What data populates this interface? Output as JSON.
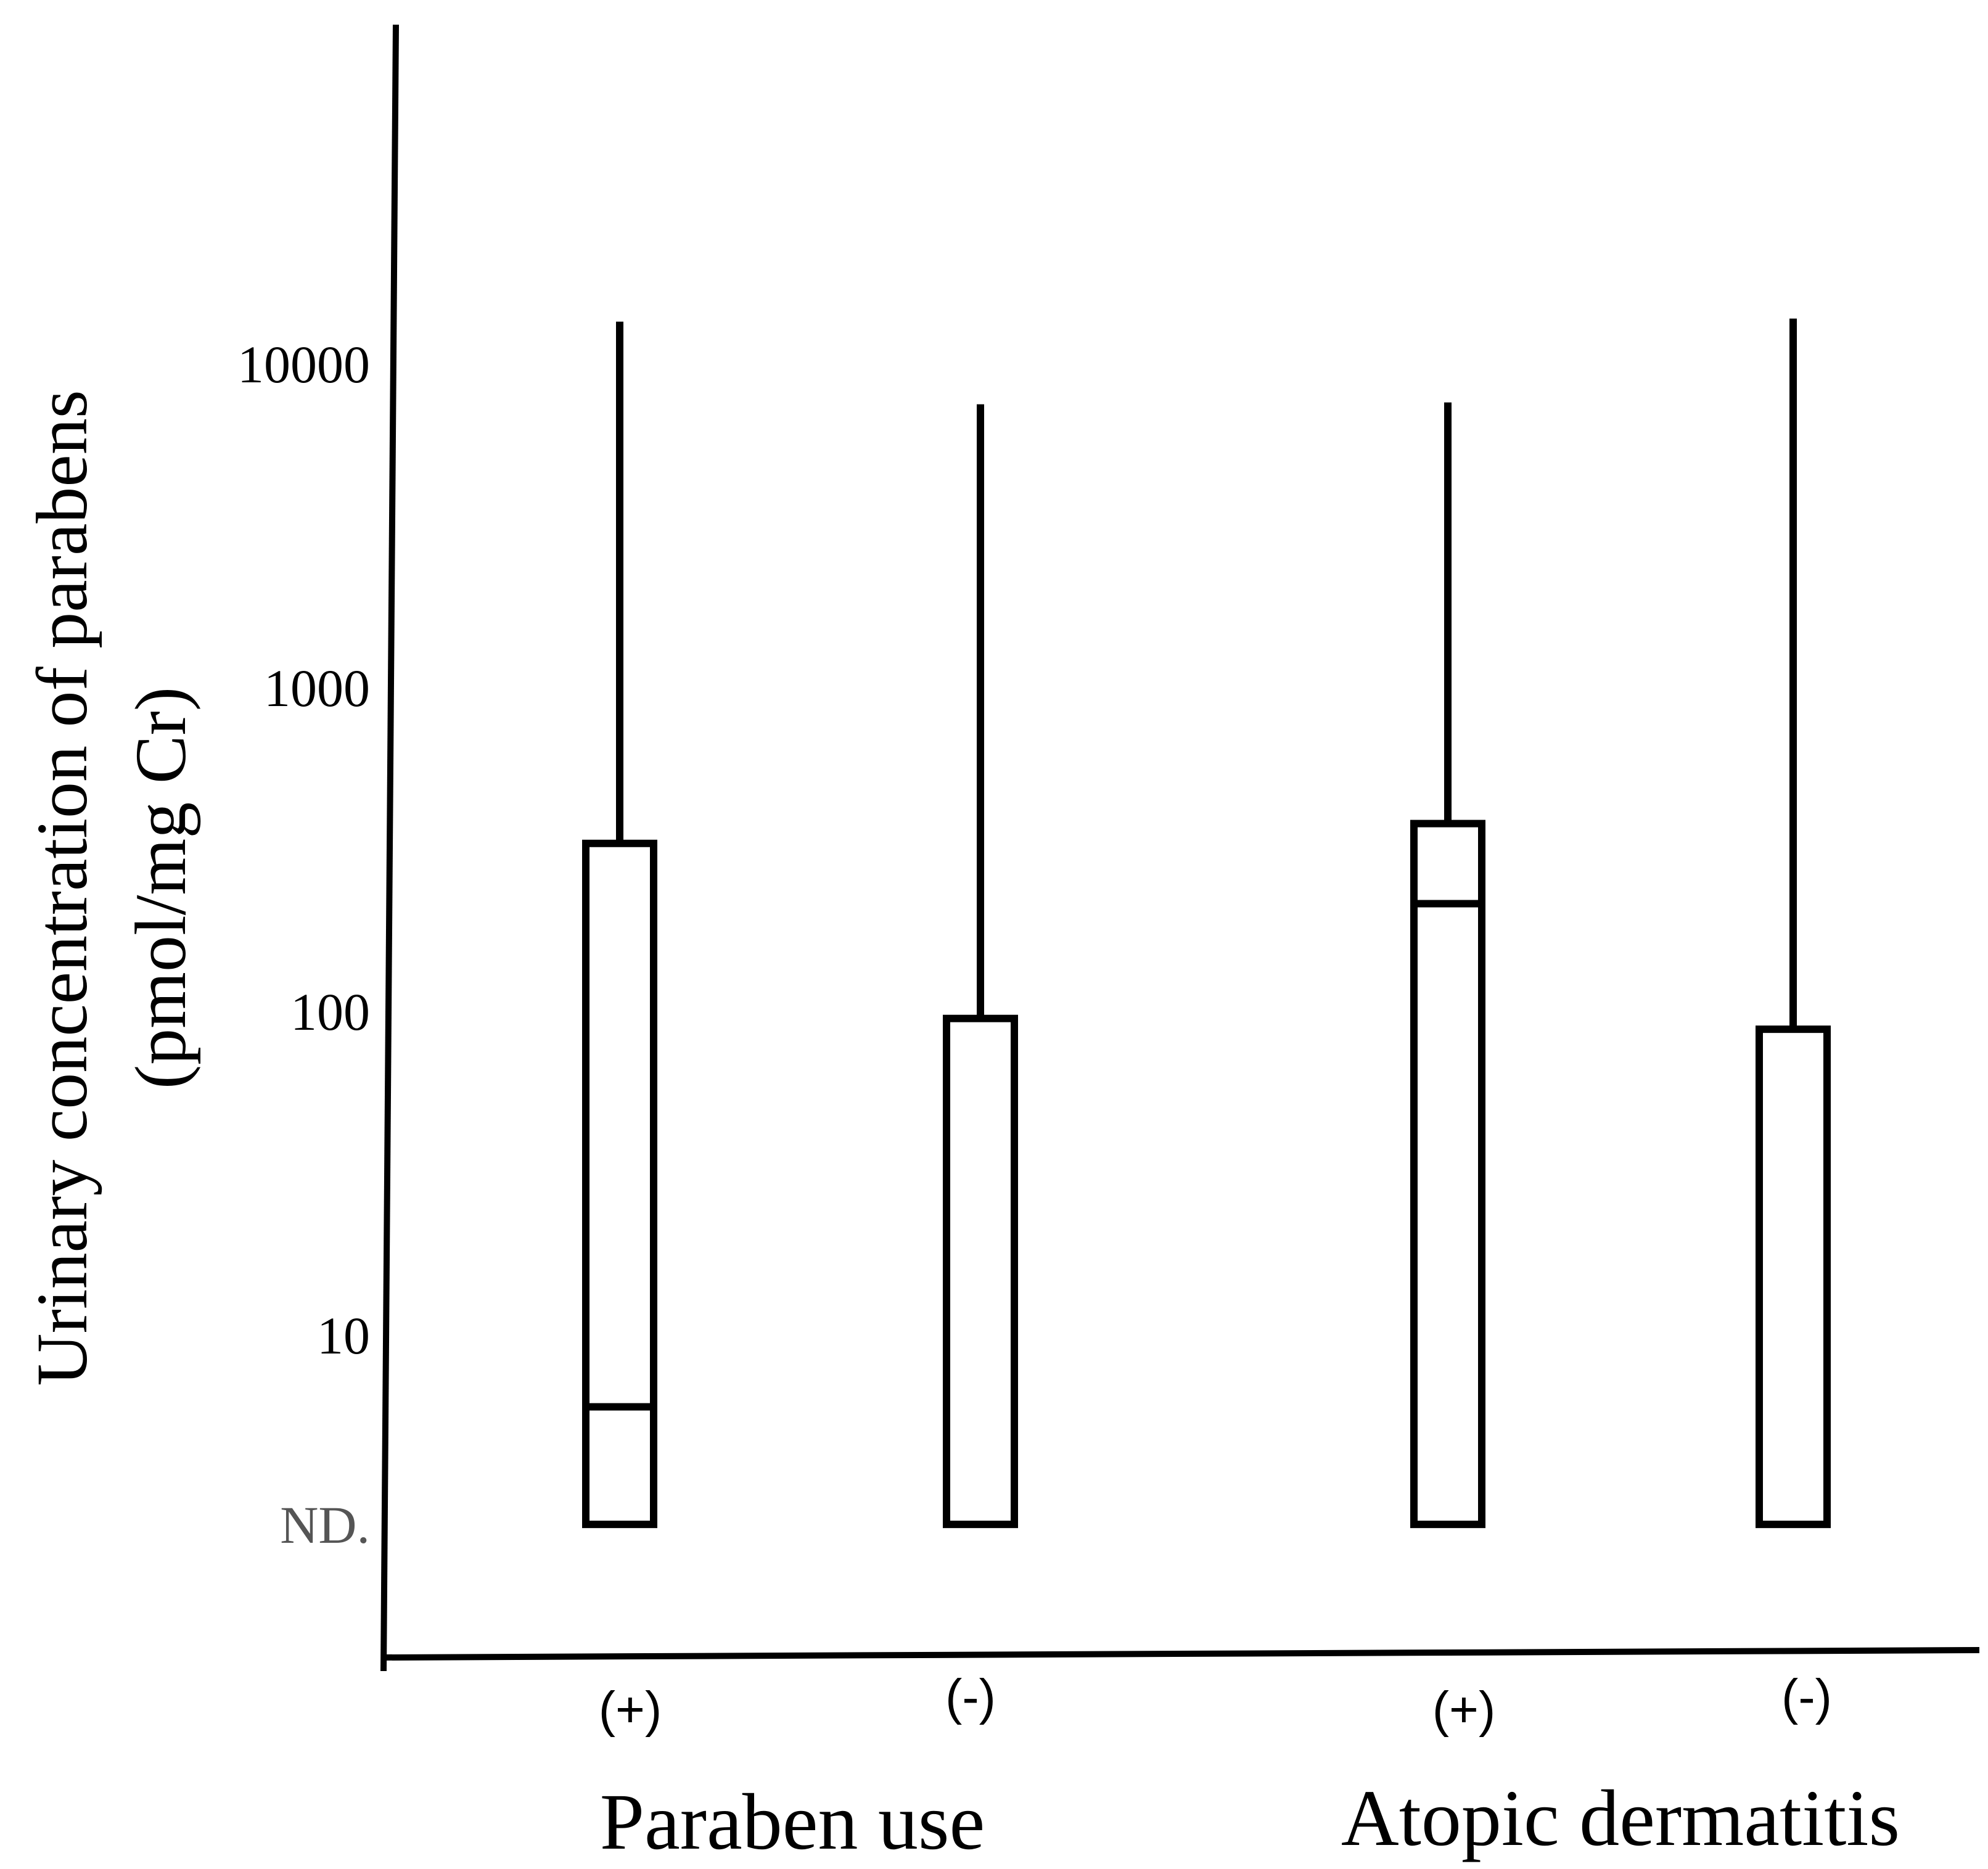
{
  "chart_data": {
    "type": "box",
    "ylabel_line1": "Urinary concentration of parabens",
    "ylabel_line2": "(pmol/mg Cr)",
    "y_scale": "log",
    "y_ticks": [
      {
        "label": "10000",
        "value": 10000
      },
      {
        "label": "1000",
        "value": 1000
      },
      {
        "label": "100",
        "value": 100
      },
      {
        "label": "10",
        "value": 10
      },
      {
        "label": "ND.",
        "value": 2.6
      }
    ],
    "groups": [
      {
        "label": "Paraben use",
        "categories": [
          "(+)",
          "(-)"
        ]
      },
      {
        "label": "Atopic dermatitis",
        "categories": [
          "(+)",
          "(-)"
        ]
      }
    ],
    "boxes": [
      {
        "category": "(+)",
        "group": "Paraben use",
        "low": 2.6,
        "q1": 2.6,
        "median": 6,
        "q3": 330,
        "high": 13500
      },
      {
        "category": "(-)",
        "group": "Paraben use",
        "low": 2.6,
        "q1": 2.6,
        "median": 2.6,
        "q3": 95,
        "high": 7500
      },
      {
        "category": "(+)",
        "group": "Atopic dermatitis",
        "low": 2.6,
        "q1": 2.6,
        "median": 215,
        "q3": 380,
        "high": 7600
      },
      {
        "category": "(-)",
        "group": "Atopic dermatitis",
        "low": 2.6,
        "q1": 2.6,
        "median": 2.6,
        "q3": 88,
        "high": 13800
      }
    ]
  }
}
